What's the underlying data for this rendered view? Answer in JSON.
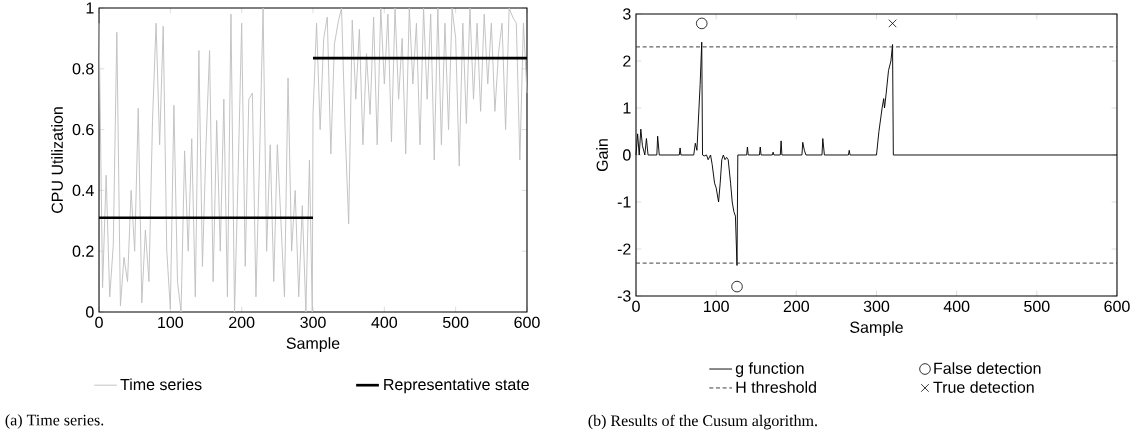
{
  "chart_data": [
    {
      "type": "line",
      "xlabel": "Sample",
      "ylabel": "CPU Utilization",
      "xlim": [
        0,
        600
      ],
      "ylim": [
        0,
        1
      ],
      "xticks": [
        0,
        100,
        200,
        300,
        400,
        500,
        600
      ],
      "yticks": [
        0,
        0.2,
        0.4,
        0.6,
        0.8,
        1
      ],
      "legend": "bottom",
      "annotations": [
        "(a) Time series."
      ],
      "series": [
        {
          "name": "Time series",
          "color": "#c0c0c0",
          "line_style": "solid",
          "x": [
            0,
            5,
            10,
            15,
            20,
            25,
            30,
            35,
            40,
            45,
            50,
            55,
            60,
            65,
            70,
            75,
            80,
            85,
            90,
            95,
            100,
            105,
            110,
            115,
            120,
            125,
            130,
            135,
            140,
            145,
            150,
            155,
            160,
            165,
            170,
            175,
            180,
            185,
            190,
            195,
            200,
            205,
            210,
            215,
            220,
            225,
            230,
            235,
            240,
            245,
            250,
            255,
            260,
            265,
            270,
            275,
            280,
            285,
            290,
            295,
            299,
            300,
            305,
            310,
            315,
            320,
            325,
            330,
            335,
            340,
            345,
            350,
            355,
            360,
            365,
            370,
            375,
            380,
            385,
            390,
            395,
            400,
            405,
            410,
            415,
            420,
            425,
            430,
            435,
            440,
            445,
            450,
            455,
            460,
            465,
            470,
            475,
            480,
            485,
            490,
            495,
            500,
            505,
            510,
            515,
            520,
            525,
            530,
            535,
            540,
            545,
            550,
            555,
            560,
            565,
            570,
            575,
            580,
            585,
            590,
            595,
            600
          ],
          "values": [
            0.95,
            0.08,
            0.45,
            0.05,
            0.22,
            0.92,
            0.02,
            0.18,
            0.1,
            0.4,
            0.2,
            0.67,
            0.03,
            0.27,
            0.1,
            0.63,
            0.95,
            0.55,
            0.94,
            0.2,
            0.01,
            0.68,
            0.1,
            0.0,
            0.53,
            0.2,
            0.57,
            0.05,
            0.86,
            0.15,
            0.55,
            0.86,
            0.1,
            0.63,
            0.2,
            0.7,
            0.05,
            0.98,
            0.0,
            0.45,
            0.95,
            0.15,
            0.7,
            0.72,
            0.05,
            0.5,
            1.0,
            0.2,
            0.55,
            0.1,
            0.55,
            0.3,
            0.05,
            0.77,
            0.2,
            0.4,
            0.05,
            0.35,
            0.0,
            0.5,
            0.0,
            0.65,
            0.95,
            0.6,
            0.9,
            0.97,
            0.52,
            0.88,
            0.95,
            1.0,
            0.6,
            0.29,
            0.96,
            0.7,
            0.93,
            0.55,
            0.85,
            0.65,
            0.97,
            0.55,
            1.0,
            0.75,
            0.98,
            0.56,
            1.0,
            0.7,
            0.9,
            0.52,
            1.0,
            0.75,
            0.95,
            0.55,
            1.0,
            0.7,
            0.98,
            0.5,
            1.0,
            0.55,
            0.95,
            0.6,
            1.0,
            0.9,
            0.48,
            0.95,
            0.62,
            1.0,
            0.7,
            0.95,
            0.66,
            0.98,
            0.75,
            0.95,
            0.66,
            0.85,
            0.95,
            0.6,
            1.0,
            0.97,
            0.95,
            0.5,
            0.95,
            0.72
          ]
        },
        {
          "name": "Representative state",
          "color": "#000000",
          "line_style": "solid",
          "x": [
            0,
            300
          ],
          "values": [
            0.31,
            0.31
          ]
        },
        {
          "color": "#000000",
          "line_style": "solid",
          "x": [
            300,
            600
          ],
          "values": [
            0.835,
            0.835
          ]
        }
      ]
    },
    {
      "type": "line",
      "xlabel": "Sample",
      "ylabel": "Gain",
      "xlim": [
        0,
        600
      ],
      "ylim": [
        -3,
        3
      ],
      "xticks": [
        0,
        100,
        200,
        300,
        400,
        500,
        600
      ],
      "yticks": [
        -3,
        -2,
        -1,
        0,
        1,
        2,
        3
      ],
      "legend": "bottom",
      "annotations": [
        "(b) Results of the Cusum algorithm."
      ],
      "series": [
        {
          "name": "g function",
          "color": "#000000",
          "line_style": "solid",
          "x": [
            0,
            2,
            4,
            6,
            8,
            11,
            13,
            15,
            26,
            27,
            29,
            54,
            55,
            56,
            72,
            74,
            76,
            80,
            82,
            83,
            85,
            88,
            90,
            93,
            95,
            98,
            100,
            103,
            105,
            107,
            109,
            111,
            113,
            115,
            118,
            120,
            122,
            124,
            126,
            127,
            138,
            139,
            140,
            154,
            155,
            156,
            170,
            171,
            172,
            180,
            181,
            182,
            207,
            208,
            210,
            212,
            232,
            233,
            235,
            265,
            266,
            267,
            300,
            303,
            307,
            309,
            310,
            312,
            315,
            318,
            320,
            321,
            600
          ],
          "values": [
            0,
            0.45,
            0,
            0.55,
            0.2,
            0,
            0.35,
            0,
            0,
            0.4,
            0,
            0,
            0.15,
            0,
            0,
            0.25,
            0.1,
            1.5,
            2.4,
            0,
            -0.02,
            0,
            -0.1,
            0,
            -0.2,
            -0.6,
            -0.7,
            -1.0,
            -0.6,
            -0.1,
            0,
            -0.1,
            -0.05,
            -0.1,
            -0.6,
            -1.0,
            -1.2,
            -1.3,
            -2.35,
            0,
            0,
            0.17,
            0,
            0,
            0.17,
            0,
            0,
            0.06,
            0,
            0,
            0.3,
            0,
            0,
            0.27,
            0.1,
            0,
            0,
            0.35,
            0,
            0,
            0.1,
            0,
            0,
            0.5,
            1.0,
            1.2,
            1.0,
            1.3,
            1.8,
            2.0,
            2.35,
            0,
            0
          ]
        },
        {
          "name": "False detection",
          "type": "scatter",
          "marker": "circle",
          "color": "#000000",
          "x": [
            82,
            126
          ],
          "values": [
            2.8,
            -2.8
          ]
        },
        {
          "name": "H threshold",
          "color": "#333333",
          "line_style": "dashed",
          "x": [
            0,
            600
          ],
          "values": [
            2.3,
            2.3
          ]
        },
        {
          "color": "#333333",
          "line_style": "dashed",
          "x": [
            0,
            600
          ],
          "values": [
            -2.3,
            -2.3
          ]
        },
        {
          "name": "True detection",
          "type": "scatter",
          "marker": "cross",
          "color": "#000000",
          "x": [
            320
          ],
          "values": [
            2.8
          ]
        }
      ]
    }
  ]
}
